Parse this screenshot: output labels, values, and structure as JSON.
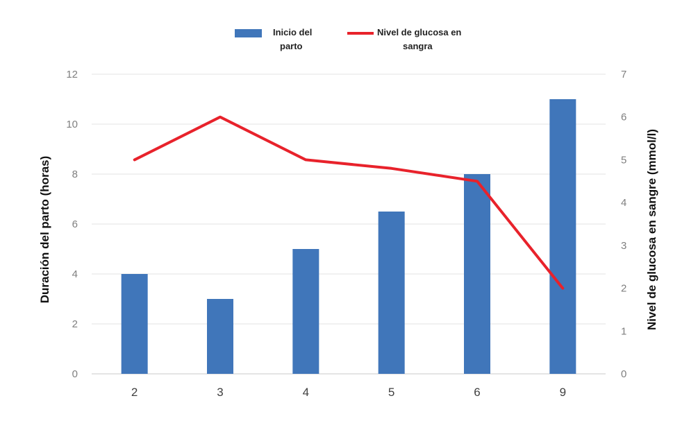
{
  "chart_data": {
    "type": "bar",
    "categories": [
      "2",
      "3",
      "4",
      "5",
      "6",
      "9"
    ],
    "series": [
      {
        "name": "Inicio del parto",
        "type": "bar",
        "axis": "left",
        "color": "#4076ba",
        "values": [
          4,
          3,
          5,
          6.5,
          8,
          11
        ]
      },
      {
        "name": "Nivel de glucosa en sangra",
        "type": "line",
        "axis": "right",
        "color": "#e8222b",
        "values": [
          5,
          6,
          5,
          4.8,
          4.5,
          2
        ]
      }
    ],
    "title": "",
    "xlabel": "",
    "ylabel": "Duración del parto (horas)",
    "ylabel_right": "Nivel de glucosa en sangre (mmol/l)",
    "ylim": [
      0,
      12
    ],
    "ylim_right": [
      0,
      7
    ],
    "yticks": [
      "0",
      "2",
      "4",
      "6",
      "8",
      "10",
      "12"
    ],
    "yticks_right": [
      "0",
      "1",
      "2",
      "3",
      "4",
      "5",
      "6",
      "7"
    ],
    "grid": true,
    "legend_position": "top-center",
    "legend": [
      {
        "label_line1": "Inicio del",
        "label_line2": "parto"
      },
      {
        "label_line1": "Nivel de glucosa en",
        "label_line2": "sangra"
      }
    ]
  }
}
